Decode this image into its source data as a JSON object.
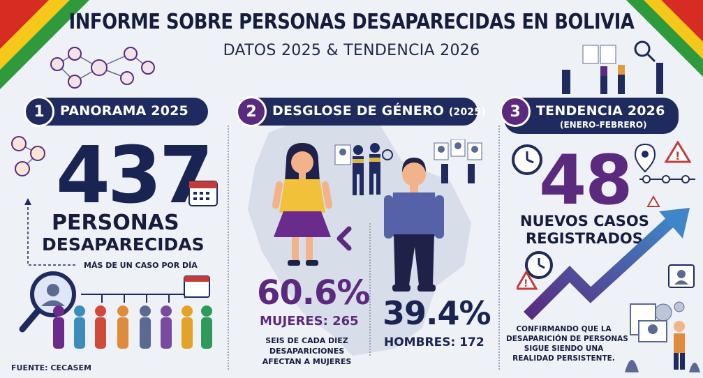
{
  "header": {
    "title": "INFORME SOBRE PERSONAS DESAPARECIDAS EN BOLIVIA",
    "subtitle": "DATOS 2025 & TENDENCIA 2026"
  },
  "section1": {
    "number": "1",
    "title": "PANORAMA 2025",
    "big_number": "437",
    "label_line1": "PERSONAS",
    "label_line2": "DESAPARECIDAS",
    "note": "MÁS DE UN CASO POR DÍA"
  },
  "section2": {
    "number": "2",
    "title": "DESGLOSE DE GÉNERO",
    "title_suffix": "(2025)",
    "women_percent": "60.6%",
    "women_label": "MUJERES: 265",
    "women_note_1": "SEIS DE CADA DIEZ",
    "women_note_2": "DESAPARICIONES",
    "women_note_3": "AFECTAN A MUJERES",
    "men_percent": "39.4%",
    "men_label": "HOMBRES: 172"
  },
  "section3": {
    "number": "3",
    "title": "TENDENCIA 2026",
    "subtitle": "(ENERO-FEBRERO)",
    "big_number": "48",
    "label_line1": "NUEVOS CASOS",
    "label_line2": "REGISTRADOS",
    "note_1": "CONFIRMANDO QUE LA",
    "note_2": "DESAPARICIÓN DE PERSONAS",
    "note_3": "SIGUE SIENDO UNA",
    "note_4": "REALIDAD PERSISTENTE."
  },
  "footer": {
    "source": "FUENTE: CECASEM"
  },
  "colors": {
    "navy": "#1f2a5e",
    "purple": "#5b2a7e",
    "women_purple": "#6a2b8c",
    "background": "#eef1f6"
  }
}
